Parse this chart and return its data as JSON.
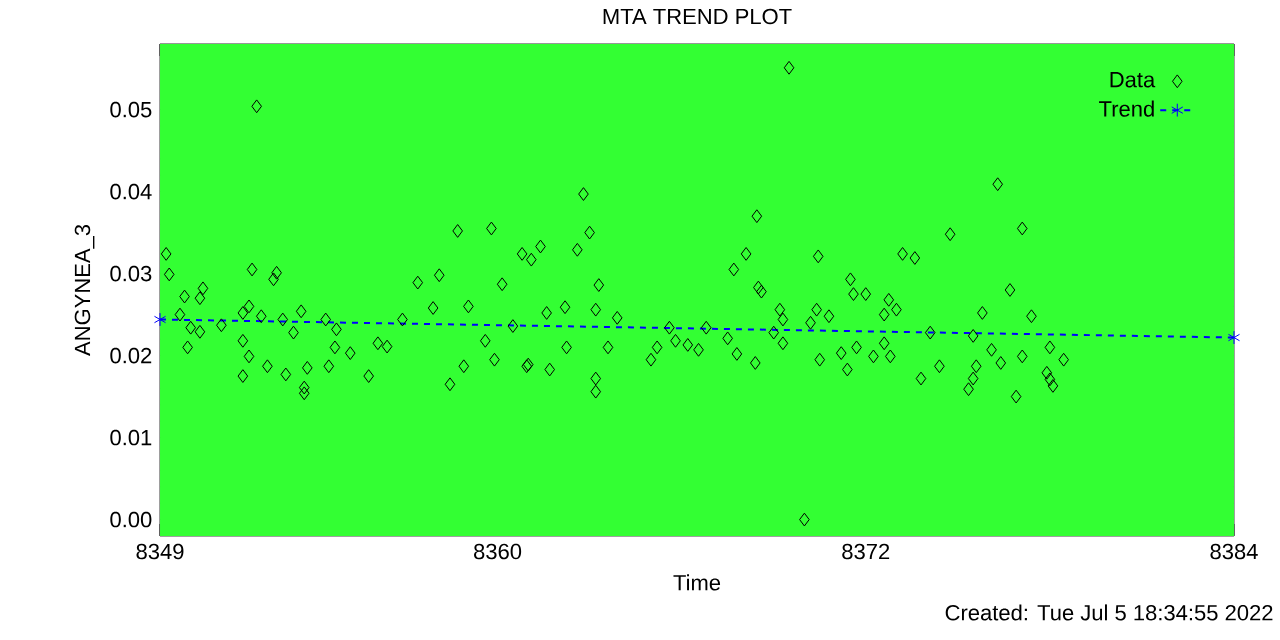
{
  "chart_data": {
    "type": "scatter",
    "title": "MTA TREND PLOT",
    "xlabel": "Time",
    "ylabel": "ANGYNEA_3",
    "annotations": [
      "Created: Tue Jul  5 18:34:55 2022"
    ],
    "xlim": [
      8349,
      8384
    ],
    "xticks": [
      {
        "value": 8349,
        "label": "8349"
      },
      {
        "value": 8360,
        "label": "8360"
      },
      {
        "value": 8372,
        "label": "8372"
      },
      {
        "value": 8384,
        "label": "8384"
      }
    ],
    "ylim": [
      -0.002,
      0.058
    ],
    "yticks": [
      {
        "value": 0,
        "label": "0.00"
      },
      {
        "value": 0.01,
        "label": "0.01"
      },
      {
        "value": 0.02,
        "label": "0.02"
      },
      {
        "value": 0.03,
        "label": "0.03"
      },
      {
        "value": 0.04,
        "label": "0.04"
      },
      {
        "value": 0.05,
        "label": "0.05"
      }
    ],
    "legend": "top right",
    "series": [
      {
        "name": "Data",
        "type": "scatter",
        "marker": "diamond",
        "color": "#000000",
        "x": [
          8349.2,
          8349.3,
          8349.8,
          8350.4,
          8350.3,
          8349.65,
          8350.0,
          8350.3,
          8349.9,
          8351.0,
          8352.0,
          8352.7,
          8352.8,
          8352.15,
          8351.9,
          8351.7,
          8352.3,
          8351.7,
          8351.9,
          8351.7,
          8352.5,
          8353.0,
          8353.6,
          8353.35,
          8353.1,
          8353.8,
          8353.7,
          8353.7,
          8354.4,
          8354.75,
          8354.7,
          8355.2,
          8354.5,
          8355.8,
          8356.1,
          8356.4,
          8356.9,
          8357.4,
          8358.1,
          8357.9,
          8358.7,
          8359.8,
          8359.05,
          8360.15,
          8360.8,
          8360.5,
          8359.6,
          8358.9,
          8358.45,
          8359.9,
          8360.95,
          8361.1,
          8361.4,
          8362.8,
          8363.0,
          8362.6,
          8363.3,
          8361.6,
          8362.2,
          8363.2,
          8363.9,
          8362.25,
          8363.6,
          8361.0,
          8361.7,
          8363.2,
          8363.2,
          8365.6,
          8365.2,
          8365.0,
          8365.8,
          8366.2,
          8366.55,
          8366.8,
          8367.5,
          8367.8,
          8368.4,
          8367.7,
          8368.1,
          8368.45,
          8368.5,
          8368.6,
          8369.5,
          8370.0,
          8369.0,
          8369.2,
          8369.3,
          8369.3,
          8370.4,
          8370.8,
          8370.2,
          8370.45,
          8371.5,
          8371.6,
          8372.0,
          8372.6,
          8371.2,
          8371.7,
          8371.4,
          8370.5,
          8372.25,
          8372.6,
          8372.75,
          8373.0,
          8373.2,
          8373.6,
          8372.8,
          8374.1,
          8373.8,
          8374.4,
          8374.75,
          8376.3,
          8377.1,
          8376.7,
          8375.8,
          8377.4,
          8375.5,
          8376.1,
          8376.4,
          8375.6,
          8375.5,
          8375.35,
          8377.1,
          8376.9,
          8378.0,
          8378.45,
          8377.9,
          8378.1,
          8378.0
        ],
        "values": [
          0.0324,
          0.0299,
          0.0272,
          0.0282,
          0.027,
          0.025,
          0.0234,
          0.0229,
          0.021,
          0.0237,
          0.0305,
          0.0293,
          0.0301,
          0.0504,
          0.026,
          0.0252,
          0.0248,
          0.0218,
          0.0199,
          0.0175,
          0.0187,
          0.0244,
          0.0254,
          0.0228,
          0.0177,
          0.0185,
          0.0161,
          0.0154,
          0.0244,
          0.0232,
          0.021,
          0.0203,
          0.0187,
          0.0175,
          0.0215,
          0.0211,
          0.0244,
          0.0289,
          0.0298,
          0.0258,
          0.0352,
          0.0355,
          0.026,
          0.0287,
          0.0324,
          0.0236,
          0.0218,
          0.0187,
          0.0165,
          0.0195,
          0.0187,
          0.0317,
          0.0333,
          0.0397,
          0.035,
          0.0329,
          0.0286,
          0.0252,
          0.0259,
          0.0256,
          0.0246,
          0.021,
          0.021,
          0.0189,
          0.0183,
          0.0172,
          0.0156,
          0.0234,
          0.021,
          0.0195,
          0.0218,
          0.0213,
          0.0207,
          0.0234,
          0.0221,
          0.0202,
          0.0191,
          0.0305,
          0.0324,
          0.037,
          0.0283,
          0.0278,
          0.0551,
          0.0,
          0.0228,
          0.0256,
          0.0244,
          0.0215,
          0.0256,
          0.0248,
          0.024,
          0.0321,
          0.0293,
          0.0275,
          0.0275,
          0.025,
          0.0203,
          0.021,
          0.0183,
          0.0195,
          0.0199,
          0.0215,
          0.0268,
          0.0256,
          0.0324,
          0.0319,
          0.0199,
          0.0228,
          0.0172,
          0.0187,
          0.0348,
          0.0409,
          0.0355,
          0.028,
          0.0252,
          0.0248,
          0.0224,
          0.0207,
          0.0191,
          0.0187,
          0.0172,
          0.0159,
          0.0199,
          0.015,
          0.021,
          0.0195,
          0.0179,
          0.0163,
          0.0171
        ]
      },
      {
        "name": "Trend",
        "type": "line",
        "marker": "cross",
        "line_style": "dashed",
        "color": "#0000ff",
        "x": [
          8349,
          8384
        ],
        "values": [
          0.0244,
          0.0222
        ]
      }
    ]
  }
}
